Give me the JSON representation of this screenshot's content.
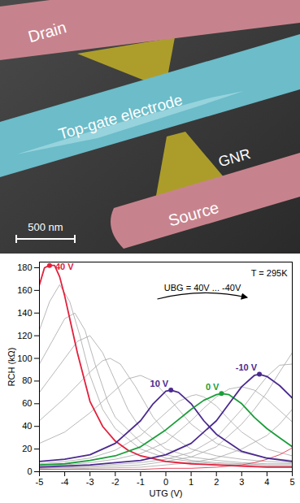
{
  "micrograph": {
    "labels": {
      "drain": "Drain",
      "gate": "Top-gate electrode",
      "gnr": "GNR",
      "source": "Source"
    },
    "scale_bar": "500 nm"
  },
  "chart_data": {
    "type": "line",
    "x_label": "UTG (V)",
    "y_label": "RCH (kΩ)",
    "annotations": [
      "T = 295K",
      "UBG = 40V ... -40V"
    ],
    "xlim": [
      -5,
      5
    ],
    "xticks": [
      -5,
      -4,
      -3,
      -2,
      -1,
      0,
      1,
      2,
      3,
      4,
      5
    ],
    "ylim": [
      0,
      185
    ],
    "yticks": [
      0,
      20,
      40,
      60,
      80,
      100,
      120,
      140,
      160,
      180
    ],
    "series": [
      {
        "color": "#a6a6a6",
        "x": [
          -5,
          -4.6,
          -4.2,
          -3.8,
          -3.4,
          -3,
          -2.5,
          -2,
          -1,
          0,
          1,
          2,
          3,
          4,
          5
        ],
        "values": [
          125,
          150,
          165,
          150,
          120,
          85,
          55,
          38,
          20,
          12,
          9,
          7,
          6,
          5,
          5
        ]
      },
      {
        "color": "#a6a6a6",
        "x": [
          -5,
          -4.5,
          -4,
          -3.6,
          -3.2,
          -2.8,
          -2.3,
          -2,
          -1,
          0,
          1,
          2,
          3,
          4,
          5
        ],
        "values": [
          95,
          115,
          135,
          140,
          125,
          95,
          62,
          48,
          26,
          15,
          10,
          8,
          7,
          6,
          6
        ]
      },
      {
        "color": "#a6a6a6",
        "x": [
          -5,
          -4,
          -3.5,
          -3,
          -2.5,
          -2,
          -1.5,
          -1,
          0,
          1,
          2,
          3,
          4,
          5
        ],
        "values": [
          70,
          100,
          115,
          120,
          105,
          80,
          55,
          38,
          20,
          13,
          10,
          8,
          7,
          7
        ]
      },
      {
        "color": "#a6a6a6",
        "x": [
          -5,
          -4,
          -3,
          -2.5,
          -2.2,
          -1.8,
          -1.2,
          -0.5,
          0,
          1,
          2,
          3,
          4,
          5
        ],
        "values": [
          45,
          65,
          88,
          98,
          100,
          95,
          75,
          48,
          35,
          20,
          14,
          11,
          9,
          8
        ]
      },
      {
        "color": "#a6a6a6",
        "x": [
          -5,
          -4,
          -3,
          -2,
          -1.5,
          -1,
          -0.5,
          0,
          0.5,
          1,
          2,
          3,
          4,
          5
        ],
        "values": [
          25,
          35,
          52,
          72,
          82,
          85,
          80,
          68,
          55,
          42,
          25,
          17,
          12,
          10
        ]
      },
      {
        "color": "#a6a6a6",
        "x": [
          -5,
          -4,
          -3,
          -2,
          -1,
          0,
          0.5,
          1,
          1.2,
          1.5,
          2,
          2.5,
          3,
          4,
          5
        ],
        "values": [
          7,
          9,
          12,
          19,
          32,
          52,
          62,
          67,
          68,
          66,
          58,
          46,
          35,
          20,
          14
        ]
      },
      {
        "color": "#a6a6a6",
        "x": [
          -5,
          -4,
          -3,
          -2,
          -1,
          0,
          1,
          1.5,
          2,
          2.5,
          3,
          3.5,
          4,
          4.5,
          5
        ],
        "values": [
          5,
          6,
          8,
          11,
          16,
          26,
          45,
          56,
          66,
          73,
          75,
          72,
          64,
          54,
          44
        ]
      },
      {
        "color": "#a6a6a6",
        "x": [
          -5,
          -3,
          -1,
          0,
          1,
          2,
          3,
          3.5,
          4,
          4.5,
          5
        ],
        "values": [
          3,
          5,
          8,
          11,
          17,
          30,
          55,
          70,
          84,
          94,
          95
        ]
      },
      {
        "color": "#a6a6a6",
        "x": [
          -5,
          -3,
          -1,
          0,
          1,
          2,
          3,
          3.5,
          4,
          4.5,
          5
        ],
        "values": [
          3,
          4,
          6,
          9,
          13,
          22,
          42,
          55,
          70,
          88,
          105
        ]
      },
      {
        "color": "#a6a6a6",
        "x": [
          -5,
          -3,
          -1,
          0,
          1,
          2,
          3,
          4,
          4.5,
          5
        ],
        "values": [
          2,
          3,
          4,
          6,
          8,
          12,
          20,
          32,
          42,
          55
        ]
      },
      {
        "color": "#e3203c",
        "x": [
          -5,
          -3,
          -1,
          0,
          1,
          2,
          3,
          3.5,
          4,
          4.5,
          5
        ],
        "values": [
          2,
          2,
          2,
          3,
          3,
          4,
          6,
          8,
          11,
          15,
          21
        ]
      },
      {
        "name": "40 V",
        "color": "#e3203c",
        "x": [
          -5,
          -4.8,
          -4.6,
          -4.4,
          -4.2,
          -4,
          -3.8,
          -3.5,
          -3,
          -2.5,
          -2,
          -1.5,
          -1,
          0,
          1,
          2,
          3,
          4,
          5
        ],
        "values": [
          165,
          180,
          182,
          182,
          172,
          155,
          135,
          105,
          62,
          40,
          27,
          19,
          14,
          9,
          7,
          6,
          5,
          4,
          4
        ]
      },
      {
        "name": "10 V",
        "color": "#4b2a8f",
        "x": [
          -5,
          -4,
          -3,
          -2,
          -1,
          -0.5,
          0,
          0.2,
          0.5,
          1,
          1.5,
          2,
          3,
          4,
          5
        ],
        "values": [
          9,
          11,
          15,
          25,
          45,
          60,
          71,
          72,
          70,
          60,
          45,
          33,
          18,
          12,
          9
        ]
      },
      {
        "name": "0 V",
        "color": "#1a9e3a",
        "x": [
          -5,
          -4,
          -3,
          -2,
          -1,
          0,
          1,
          1.5,
          2,
          2.2,
          2.5,
          3,
          3.5,
          4,
          4.5,
          5
        ],
        "values": [
          6,
          7,
          10,
          14,
          22,
          37,
          55,
          63,
          68,
          69,
          68,
          60,
          48,
          38,
          30,
          22
        ]
      },
      {
        "name": "-10 V",
        "color": "#4b2a8f",
        "x": [
          -5,
          -3,
          -1,
          0,
          1,
          2,
          2.5,
          3,
          3.5,
          3.7,
          4,
          4.5,
          5
        ],
        "values": [
          4,
          6,
          10,
          15,
          25,
          45,
          60,
          75,
          85,
          86,
          84,
          76,
          65
        ]
      }
    ]
  }
}
